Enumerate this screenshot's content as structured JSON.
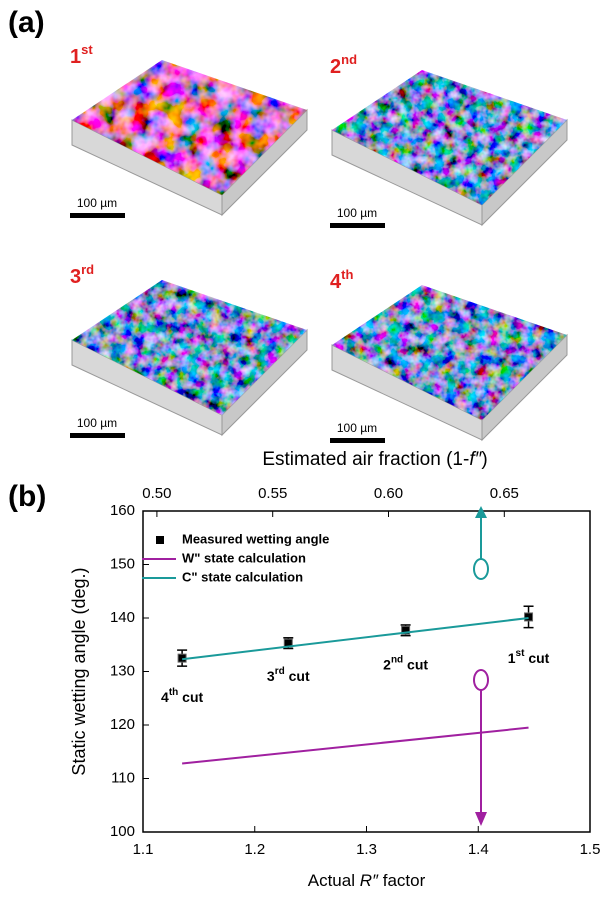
{
  "panel_a": {
    "label": "(a)",
    "images": [
      {
        "ordinal": "1",
        "sup": "st",
        "scale_bar": "100 µm"
      },
      {
        "ordinal": "2",
        "sup": "nd",
        "scale_bar": "100 µm"
      },
      {
        "ordinal": "3",
        "sup": "rd",
        "scale_bar": "100 µm"
      },
      {
        "ordinal": "4",
        "sup": "th",
        "scale_bar": "100 µm"
      }
    ]
  },
  "chart_data": {
    "type": "line",
    "panel_label": "(b)",
    "x_label": {
      "pre": "Actual ",
      "italic": "R″",
      "post": " factor"
    },
    "y_label": "Static wetting angle (deg.)",
    "x2_label": {
      "pre": "Estimated air fraction (1-",
      "italic": "f″",
      "post": ")"
    },
    "xlim": [
      1.1,
      1.5
    ],
    "xticks": [
      1.1,
      1.2,
      1.3,
      1.4,
      1.5
    ],
    "x2lim": [
      0.494,
      0.687
    ],
    "x2ticks": [
      {
        "value": 0.5,
        "label": "0.50"
      },
      0.55,
      {
        "value": 0.6,
        "label": "0.60"
      },
      0.65
    ],
    "ylim": [
      100,
      160
    ],
    "yticks": [
      100,
      110,
      120,
      130,
      140,
      150,
      160
    ],
    "series": [
      {
        "name": "Measured wetting angle",
        "type": "scatter",
        "color": "#000000",
        "x": [
          1.135,
          1.23,
          1.335,
          1.445
        ],
        "values": [
          132.5,
          135.3,
          137.7,
          140.2
        ],
        "errors": [
          1.5,
          1.0,
          1.0,
          2.0
        ]
      },
      {
        "name": "W\" state calculation",
        "type": "line",
        "color": "#a020a0",
        "x": [
          1.135,
          1.445
        ],
        "values": [
          112.8,
          119.5
        ]
      },
      {
        "name": "C\" state calculation",
        "type": "line",
        "color": "#1a9a9a",
        "x": [
          1.135,
          1.445
        ],
        "values": [
          132.3,
          140.0
        ]
      }
    ],
    "annotations": [
      {
        "num": "4",
        "sup": "th",
        "text": " cut"
      },
      {
        "num": "3",
        "sup": "rd",
        "text": " cut"
      },
      {
        "num": "2",
        "sup": "nd",
        "text": " cut"
      },
      {
        "num": "1",
        "sup": "st",
        "text": " cut"
      }
    ]
  }
}
